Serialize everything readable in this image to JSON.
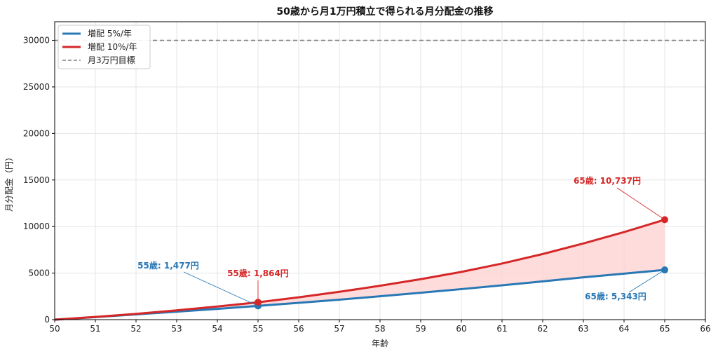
{
  "chart_data": {
    "type": "line",
    "title": "50歳から月1万円積立で得られる月分配金の推移",
    "xlabel": "年齢",
    "ylabel": "月分配金（円）",
    "xlim": [
      50,
      66
    ],
    "ylim": [
      0,
      32000
    ],
    "xticks": [
      "50",
      "51",
      "52",
      "53",
      "54",
      "55",
      "56",
      "57",
      "58",
      "59",
      "60",
      "61",
      "62",
      "63",
      "64",
      "65",
      "66"
    ],
    "yticks": [
      "0",
      "5000",
      "10000",
      "15000",
      "20000",
      "25000",
      "30000"
    ],
    "grid": true,
    "legend_position": "top-left",
    "x": [
      50,
      51,
      52,
      53,
      54,
      55,
      56,
      57,
      58,
      59,
      60,
      61,
      62,
      63,
      64,
      65
    ],
    "series": [
      {
        "name": "増配 5%/年",
        "color": "#2878b5",
        "values": [
          0,
          270,
          560,
          860,
          1160,
          1477,
          1810,
          2150,
          2510,
          2890,
          3280,
          3690,
          4110,
          4550,
          4940,
          5343
        ]
      },
      {
        "name": "増配 10%/年",
        "color": "#d62728",
        "values": [
          0,
          290,
          620,
          1000,
          1410,
          1864,
          2400,
          2990,
          3640,
          4350,
          5130,
          6030,
          7050,
          8180,
          9410,
          10737
        ]
      }
    ],
    "reference_lines": [
      {
        "name": "月3万円目標",
        "y": 30000,
        "color": "#808080",
        "style": "dashed"
      }
    ],
    "fill_between": {
      "series": [
        0,
        1
      ],
      "color": "#fdd0d0"
    },
    "annotations": [
      {
        "text": "55歳: 1,477円",
        "x": 55,
        "y": 1477,
        "color": "#2878b5"
      },
      {
        "text": "55歳: 1,864円",
        "x": 55,
        "y": 1864,
        "color": "#d62728"
      },
      {
        "text": "65歳: 10,737円",
        "x": 65,
        "y": 10737,
        "color": "#d62728"
      },
      {
        "text": "65歳: 5,343円",
        "x": 65,
        "y": 5343,
        "color": "#2878b5"
      }
    ]
  }
}
